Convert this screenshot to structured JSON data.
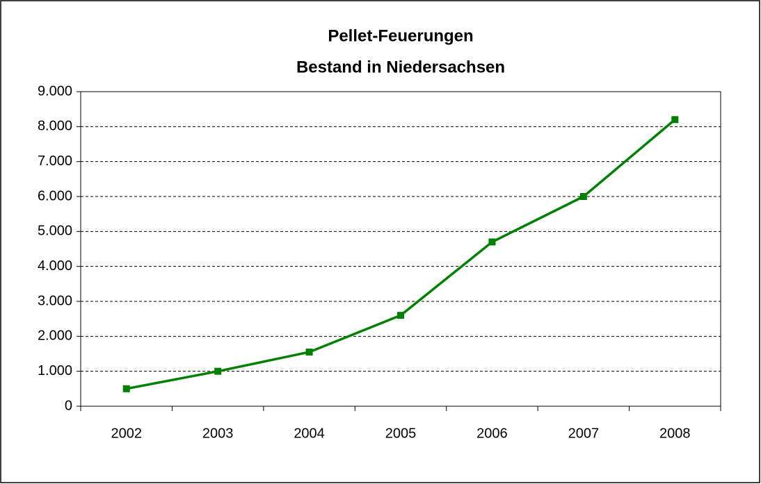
{
  "chart_data": {
    "type": "line",
    "title": [
      "Pellet-Feuerungen",
      "Bestand in Niedersachsen"
    ],
    "categories": [
      "2002",
      "2003",
      "2004",
      "2005",
      "2006",
      "2007",
      "2008"
    ],
    "series": [
      {
        "name": "Bestand",
        "color": "#008000",
        "values": [
          500,
          1000,
          1550,
          2600,
          4700,
          6000,
          8200
        ]
      }
    ],
    "ylim": [
      0,
      9000
    ],
    "yticks": [
      0,
      {
        "value": 1000,
        "label": "1.000"
      },
      {
        "value": 2000,
        "label": "2.000"
      },
      {
        "value": 3000,
        "label": "3.000"
      },
      {
        "value": 4000,
        "label": "4.000"
      },
      {
        "value": 5000,
        "label": "5.000"
      },
      {
        "value": 6000,
        "label": "6.000"
      },
      {
        "value": 7000,
        "label": "7.000"
      },
      {
        "value": 8000,
        "label": "8.000"
      },
      {
        "value": 9000,
        "label": "9.000"
      }
    ],
    "grid": true
  }
}
